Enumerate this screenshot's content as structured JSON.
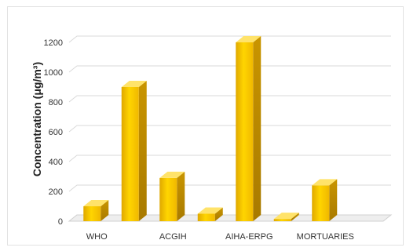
{
  "chart_data": {
    "type": "bar",
    "title": "",
    "xlabel": "",
    "ylabel": "Concentration (μg/m³)",
    "ylim": [
      0,
      1200
    ],
    "yticks": [
      0,
      200,
      400,
      600,
      800,
      1000,
      1200
    ],
    "grid": true,
    "legend": "none",
    "bar_color": "#f2c200",
    "categories": [
      "WHO",
      "",
      "ACGIH",
      "",
      "AIHA-ERPG",
      "",
      "MORTUARIES",
      ""
    ],
    "values": [
      100,
      900,
      290,
      50,
      1200,
      15,
      240,
      0
    ]
  }
}
